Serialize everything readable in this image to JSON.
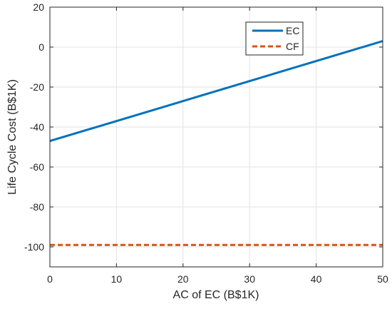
{
  "chart_data": {
    "type": "line",
    "xlabel": "AC of EC (B$1K)",
    "ylabel": "Life Cycle Cost (B$1K)",
    "xlim": [
      0,
      50
    ],
    "ylim": [
      -110,
      20
    ],
    "xticks": [
      0,
      10,
      20,
      30,
      40,
      50
    ],
    "yticks": [
      20,
      0,
      -20,
      -40,
      -60,
      -80,
      -100
    ],
    "grid": true,
    "legend_position": "top-right",
    "series": [
      {
        "name": "EC",
        "color": "#0072BD",
        "style": "solid",
        "x": [
          0,
          50
        ],
        "y": [
          -47,
          3
        ]
      },
      {
        "name": "CF",
        "color": "#D95319",
        "style": "dashed",
        "x": [
          0,
          50
        ],
        "y": [
          -99,
          -99
        ]
      }
    ]
  }
}
